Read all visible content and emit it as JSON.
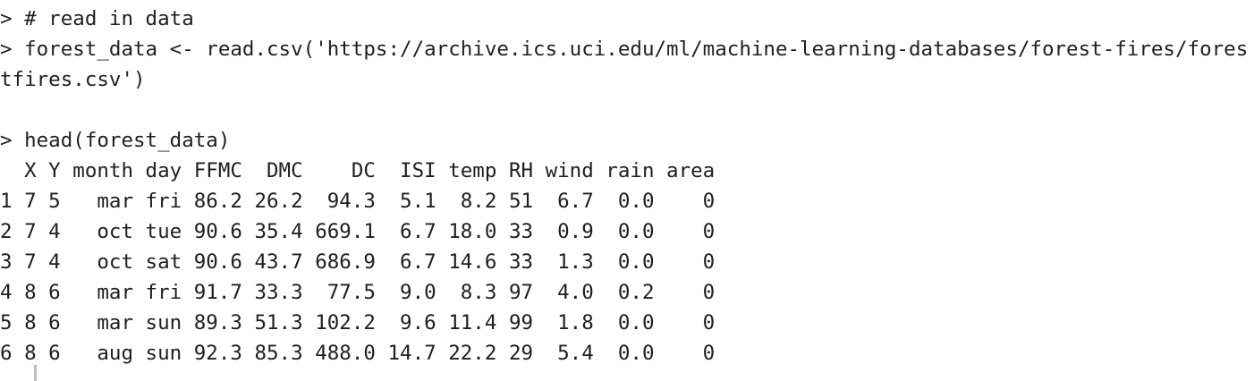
{
  "console": {
    "prompt": ">",
    "comment_line": "> # read in data",
    "read_command": "> forest_data <- read.csv('https://archive.ics.uci.edu/ml/machine-learning-databases/forest-fires/forestfires.csv')",
    "head_command": "> head(forest_data)",
    "table_header": "  X Y month day FFMC  DMC    DC  ISI temp RH wind rain area",
    "table_rows": [
      "1 7 5   mar fri 86.2 26.2  94.3  5.1  8.2 51  6.7  0.0    0",
      "2 7 4   oct tue 90.6 35.4 669.1  6.7 18.0 33  0.9  0.0    0",
      "3 7 4   oct sat 90.6 43.7 686.9  6.7 14.6 33  1.3  0.0    0",
      "4 8 6   mar fri 91.7 33.3  77.5  9.0  8.3 97  4.0  0.2    0",
      "5 8 6   mar sun 89.3 51.3 102.2  9.6 11.4 99  1.8  0.0    0",
      "6 8 6   aug sun 92.3 85.3 488.0 14.7 22.2 29  5.4  0.0    0"
    ]
  }
}
